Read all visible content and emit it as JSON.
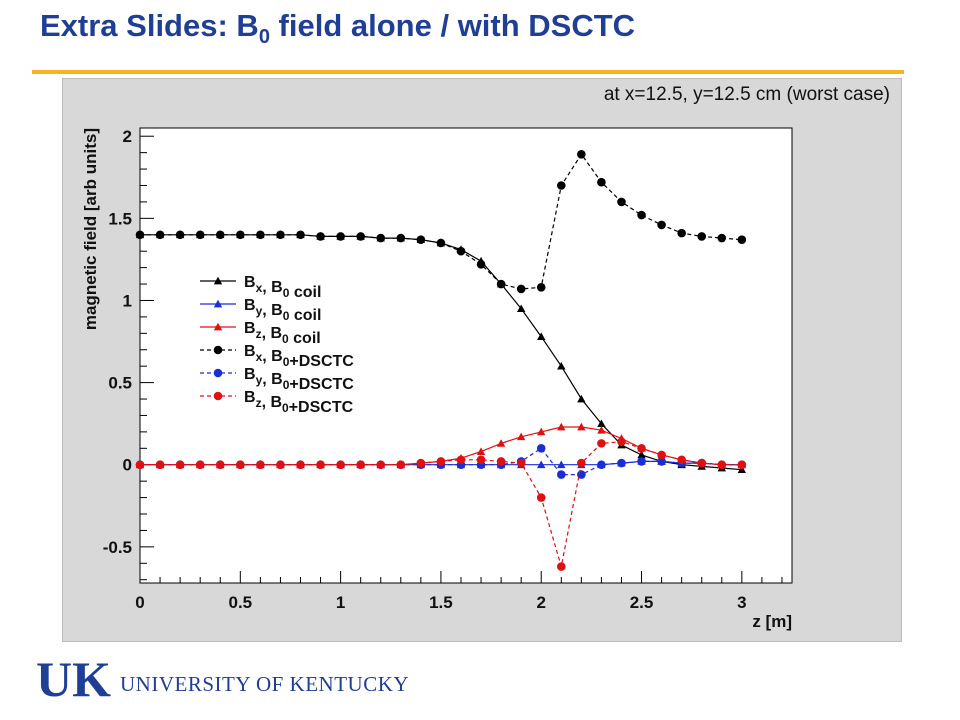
{
  "slide": {
    "title_prefix": "Extra Slides: B",
    "title_sub": "0",
    "title_suffix": " field alone / with DSCTC",
    "annotation": "at x=12.5, y=12.5 cm (worst case)"
  },
  "footer": {
    "logo_letters": "UK",
    "university_name": "UNIVERSITY OF KENTUCKY",
    "brand_color": "#1f3f96"
  },
  "colors": {
    "title": "#1f3f96",
    "accent_rule": "#f5b523",
    "panel": "#d8d8d8"
  },
  "chart_data": {
    "type": "line",
    "title": "",
    "xlabel": "z [m]",
    "ylabel": "magnetic field   [arb units]",
    "xlim": [
      0,
      3.25
    ],
    "ylim": [
      -0.72,
      2.05
    ],
    "xticks": [
      "0",
      "0.5",
      "1",
      "1.5",
      "2",
      "2.5",
      "3"
    ],
    "yticks": [
      "-0.5",
      "0",
      "0.5",
      "1",
      "1.5",
      "2"
    ],
    "legend_position": "middle-left",
    "grid": false,
    "x": [
      0,
      0.1,
      0.2,
      0.3,
      0.4,
      0.5,
      0.6,
      0.7,
      0.8,
      0.9,
      1.0,
      1.1,
      1.2,
      1.3,
      1.4,
      1.5,
      1.6,
      1.7,
      1.8,
      1.9,
      2.0,
      2.1,
      2.2,
      2.3,
      2.4,
      2.5,
      2.6,
      2.7,
      2.8,
      2.9,
      3.0
    ],
    "series": [
      {
        "name": "Bx, B0 coil",
        "label_main": "B",
        "label_sub1": "x",
        "label_mid": ", B",
        "label_sub2": "0",
        "label_tail": " coil",
        "color": "#000000",
        "marker": "triangle",
        "dashed": false,
        "values": [
          1.4,
          1.4,
          1.4,
          1.4,
          1.4,
          1.4,
          1.4,
          1.4,
          1.4,
          1.39,
          1.39,
          1.39,
          1.38,
          1.38,
          1.37,
          1.35,
          1.31,
          1.24,
          1.1,
          0.95,
          0.78,
          0.6,
          0.4,
          0.25,
          0.12,
          0.06,
          0.02,
          0.0,
          -0.01,
          -0.02,
          -0.03
        ]
      },
      {
        "name": "By, B0 coil",
        "label_main": "B",
        "label_sub1": "y",
        "label_mid": ", B",
        "label_sub2": "0",
        "label_tail": " coil",
        "color": "#1a2ed8",
        "marker": "triangle",
        "dashed": false,
        "values": [
          0,
          0,
          0,
          0,
          0,
          0,
          0,
          0,
          0,
          0,
          0,
          0,
          0,
          0,
          0,
          0,
          0,
          0,
          0,
          0,
          0,
          0,
          0,
          0,
          0.01,
          0.02,
          0.02,
          0.01,
          0.01,
          0.0,
          0.0
        ]
      },
      {
        "name": "Bz, B0 coil",
        "label_main": "B",
        "label_sub1": "z",
        "label_mid": ", B",
        "label_sub2": "0",
        "label_tail": " coil",
        "color": "#e01010",
        "marker": "triangle",
        "dashed": false,
        "values": [
          0,
          0,
          0,
          0,
          0,
          0,
          0,
          0,
          0,
          0,
          0,
          0,
          0,
          0,
          0.01,
          0.02,
          0.04,
          0.08,
          0.13,
          0.17,
          0.2,
          0.23,
          0.23,
          0.21,
          0.16,
          0.1,
          0.06,
          0.03,
          0.01,
          0.0,
          0.0
        ]
      },
      {
        "name": "Bx, B0+DSCTC",
        "label_main": "B",
        "label_sub1": "x",
        "label_mid": ", B",
        "label_sub2": "0",
        "label_tail": "+DSCTC",
        "color": "#000000",
        "marker": "circle",
        "dashed": true,
        "values": [
          1.4,
          1.4,
          1.4,
          1.4,
          1.4,
          1.4,
          1.4,
          1.4,
          1.4,
          1.39,
          1.39,
          1.39,
          1.38,
          1.38,
          1.37,
          1.35,
          1.3,
          1.22,
          1.1,
          1.07,
          1.08,
          1.7,
          1.89,
          1.72,
          1.6,
          1.52,
          1.46,
          1.41,
          1.39,
          1.38,
          1.37
        ]
      },
      {
        "name": "By, B0+DSCTC",
        "label_main": "B",
        "label_sub1": "y",
        "label_mid": ", B",
        "label_sub2": "0",
        "label_tail": "+DSCTC",
        "color": "#1a2ed8",
        "marker": "circle",
        "dashed": true,
        "values": [
          0,
          0,
          0,
          0,
          0,
          0,
          0,
          0,
          0,
          0,
          0,
          0,
          0,
          0,
          0,
          0,
          0,
          0,
          0.0,
          0.02,
          0.1,
          -0.06,
          -0.06,
          0.0,
          0.01,
          0.02,
          0.02,
          0.01,
          0.01,
          0.0,
          0.0
        ]
      },
      {
        "name": "Bz, B0+DSCTC",
        "label_main": "B",
        "label_sub1": "z",
        "label_mid": ", B",
        "label_sub2": "0",
        "label_tail": "+DSCTC",
        "color": "#e01010",
        "marker": "circle",
        "dashed": true,
        "values": [
          0,
          0,
          0,
          0,
          0,
          0,
          0,
          0,
          0,
          0,
          0,
          0,
          0,
          0,
          0.01,
          0.02,
          0.03,
          0.03,
          0.02,
          0.01,
          -0.2,
          -0.62,
          0.01,
          0.13,
          0.14,
          0.1,
          0.06,
          0.03,
          0.01,
          0.0,
          0.0
        ]
      }
    ]
  }
}
